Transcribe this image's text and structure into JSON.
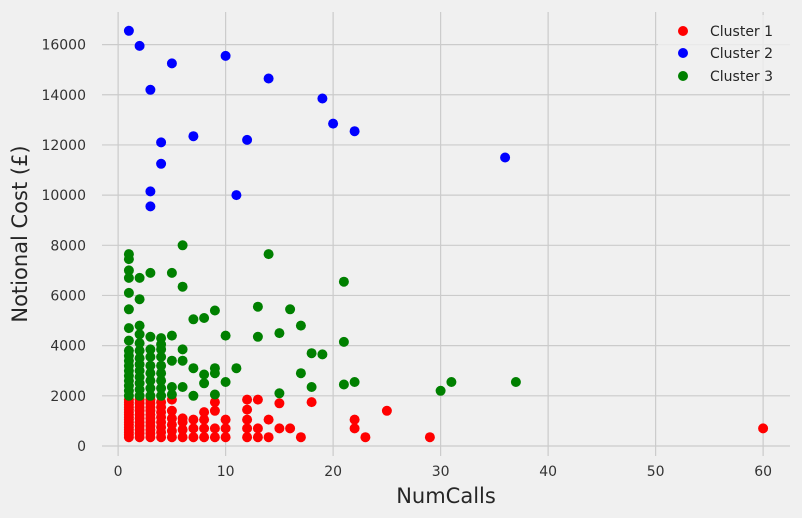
{
  "chart_data": {
    "type": "scatter",
    "xlabel": "NumCalls",
    "ylabel": "Notional Cost (£)",
    "xlim": [
      -1.5,
      62.5
    ],
    "ylim": [
      -400,
      17300
    ],
    "xticks": [
      0,
      10,
      20,
      30,
      40,
      50,
      60
    ],
    "yticks": [
      0,
      2000,
      4000,
      6000,
      8000,
      10000,
      12000,
      14000,
      16000
    ],
    "grid": true,
    "legend_position": "top-right",
    "series": [
      {
        "name": "Cluster 1",
        "color": "#ff0000",
        "points": [
          [
            1,
            350
          ],
          [
            1,
            450
          ],
          [
            1,
            550
          ],
          [
            1,
            650
          ],
          [
            1,
            750
          ],
          [
            1,
            850
          ],
          [
            1,
            950
          ],
          [
            1,
            1050
          ],
          [
            1,
            1150
          ],
          [
            1,
            1250
          ],
          [
            1,
            1350
          ],
          [
            1,
            1450
          ],
          [
            1,
            1550
          ],
          [
            1,
            1650
          ],
          [
            1,
            1750
          ],
          [
            1,
            1850
          ],
          [
            2,
            350
          ],
          [
            2,
            500
          ],
          [
            2,
            650
          ],
          [
            2,
            800
          ],
          [
            2,
            950
          ],
          [
            2,
            1100
          ],
          [
            2,
            1250
          ],
          [
            2,
            1400
          ],
          [
            2,
            1550
          ],
          [
            2,
            1700
          ],
          [
            2,
            1850
          ],
          [
            3,
            350
          ],
          [
            3,
            500
          ],
          [
            3,
            650
          ],
          [
            3,
            800
          ],
          [
            3,
            950
          ],
          [
            3,
            1100
          ],
          [
            3,
            1250
          ],
          [
            3,
            1400
          ],
          [
            3,
            1550
          ],
          [
            3,
            1700
          ],
          [
            3,
            1850
          ],
          [
            4,
            350
          ],
          [
            4,
            550
          ],
          [
            4,
            750
          ],
          [
            4,
            950
          ],
          [
            4,
            1150
          ],
          [
            4,
            1350
          ],
          [
            4,
            1550
          ],
          [
            4,
            1750
          ],
          [
            5,
            350
          ],
          [
            5,
            600
          ],
          [
            5,
            850
          ],
          [
            5,
            1100
          ],
          [
            5,
            1400
          ],
          [
            5,
            1850
          ],
          [
            6,
            350
          ],
          [
            6,
            650
          ],
          [
            6,
            950
          ],
          [
            6,
            1100
          ],
          [
            7,
            350
          ],
          [
            7,
            700
          ],
          [
            7,
            1050
          ],
          [
            8,
            350
          ],
          [
            8,
            700
          ],
          [
            8,
            1050
          ],
          [
            8,
            1350
          ],
          [
            9,
            350
          ],
          [
            9,
            700
          ],
          [
            9,
            1400
          ],
          [
            9,
            1750
          ],
          [
            10,
            350
          ],
          [
            10,
            700
          ],
          [
            10,
            1050
          ],
          [
            12,
            350
          ],
          [
            12,
            700
          ],
          [
            12,
            1050
          ],
          [
            12,
            1450
          ],
          [
            12,
            1850
          ],
          [
            13,
            350
          ],
          [
            13,
            700
          ],
          [
            13,
            1850
          ],
          [
            14,
            350
          ],
          [
            14,
            1050
          ],
          [
            15,
            700
          ],
          [
            15,
            1700
          ],
          [
            16,
            700
          ],
          [
            17,
            350
          ],
          [
            18,
            1750
          ],
          [
            22,
            700
          ],
          [
            22,
            1050
          ],
          [
            23,
            350
          ],
          [
            25,
            1400
          ],
          [
            29,
            350
          ],
          [
            60,
            700
          ]
        ]
      },
      {
        "name": "Cluster 2",
        "color": "#0000ff",
        "points": [
          [
            1,
            16550
          ],
          [
            2,
            15950
          ],
          [
            3,
            14200
          ],
          [
            3,
            10150
          ],
          [
            3,
            9550
          ],
          [
            4,
            12100
          ],
          [
            4,
            11250
          ],
          [
            5,
            15250
          ],
          [
            7,
            12350
          ],
          [
            10,
            15550
          ],
          [
            11,
            10000
          ],
          [
            12,
            12200
          ],
          [
            14,
            14650
          ],
          [
            19,
            13850
          ],
          [
            20,
            12850
          ],
          [
            22,
            12550
          ],
          [
            36,
            11500
          ]
        ]
      },
      {
        "name": "Cluster 3",
        "color": "#008000",
        "points": [
          [
            1,
            2000
          ],
          [
            1,
            2200
          ],
          [
            1,
            2400
          ],
          [
            1,
            2600
          ],
          [
            1,
            2800
          ],
          [
            1,
            3000
          ],
          [
            1,
            3200
          ],
          [
            1,
            3400
          ],
          [
            1,
            3600
          ],
          [
            1,
            3800
          ],
          [
            1,
            4200
          ],
          [
            1,
            4700
          ],
          [
            1,
            5450
          ],
          [
            1,
            6100
          ],
          [
            1,
            6700
          ],
          [
            1,
            7000
          ],
          [
            1,
            7450
          ],
          [
            1,
            7650
          ],
          [
            2,
            2000
          ],
          [
            2,
            2250
          ],
          [
            2,
            2500
          ],
          [
            2,
            2750
          ],
          [
            2,
            3000
          ],
          [
            2,
            3250
          ],
          [
            2,
            3500
          ],
          [
            2,
            3800
          ],
          [
            2,
            4100
          ],
          [
            2,
            4450
          ],
          [
            2,
            4800
          ],
          [
            2,
            5850
          ],
          [
            2,
            6700
          ],
          [
            3,
            2000
          ],
          [
            3,
            2300
          ],
          [
            3,
            2600
          ],
          [
            3,
            2900
          ],
          [
            3,
            3200
          ],
          [
            3,
            3550
          ],
          [
            3,
            3850
          ],
          [
            3,
            4350
          ],
          [
            3,
            6900
          ],
          [
            4,
            2000
          ],
          [
            4,
            2300
          ],
          [
            4,
            2600
          ],
          [
            4,
            2900
          ],
          [
            4,
            3200
          ],
          [
            4,
            3550
          ],
          [
            4,
            3850
          ],
          [
            4,
            4050
          ],
          [
            4,
            4300
          ],
          [
            5,
            2050
          ],
          [
            5,
            2350
          ],
          [
            5,
            3400
          ],
          [
            5,
            4400
          ],
          [
            5,
            6900
          ],
          [
            6,
            2350
          ],
          [
            6,
            3400
          ],
          [
            6,
            3850
          ],
          [
            6,
            6350
          ],
          [
            6,
            8000
          ],
          [
            7,
            2000
          ],
          [
            7,
            3100
          ],
          [
            7,
            5050
          ],
          [
            8,
            2500
          ],
          [
            8,
            2850
          ],
          [
            8,
            5100
          ],
          [
            9,
            2050
          ],
          [
            9,
            2900
          ],
          [
            9,
            3100
          ],
          [
            9,
            5400
          ],
          [
            10,
            2550
          ],
          [
            10,
            4400
          ],
          [
            11,
            3100
          ],
          [
            13,
            4350
          ],
          [
            13,
            5550
          ],
          [
            14,
            7650
          ],
          [
            15,
            2100
          ],
          [
            15,
            4500
          ],
          [
            16,
            5450
          ],
          [
            17,
            2900
          ],
          [
            17,
            4800
          ],
          [
            18,
            2350
          ],
          [
            18,
            3700
          ],
          [
            19,
            3650
          ],
          [
            21,
            2450
          ],
          [
            21,
            4150
          ],
          [
            21,
            6550
          ],
          [
            22,
            2550
          ],
          [
            30,
            2200
          ],
          [
            31,
            2550
          ],
          [
            37,
            2550
          ]
        ]
      }
    ]
  }
}
